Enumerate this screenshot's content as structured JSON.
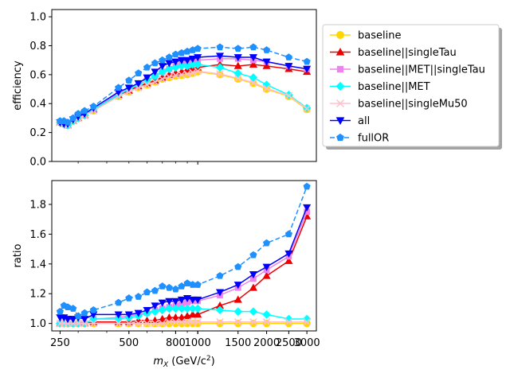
{
  "chart_data": [
    {
      "type": "line",
      "panel": "top",
      "ylabel": "efficiency",
      "xlabel": "",
      "xscale": "log",
      "xlim": [
        230,
        3300
      ],
      "ylim": [
        0.0,
        1.05
      ],
      "yticks": [
        0.0,
        0.2,
        0.4,
        0.6,
        0.8,
        1.0
      ],
      "ytick_labels": [
        "0.0",
        "0.2",
        "0.4",
        "0.6",
        "0.8",
        "1.0"
      ],
      "grid": false,
      "legend_position": "outside-right",
      "x": [
        250,
        260,
        270,
        285,
        300,
        320,
        350,
        450,
        500,
        550,
        600,
        650,
        700,
        750,
        800,
        850,
        900,
        950,
        1000,
        1250,
        1500,
        1750,
        2000,
        2500,
        3000
      ],
      "series": [
        {
          "name": "baseline",
          "color": "#ffd700",
          "marker": "circle",
          "dashed": false,
          "values": [
            0.27,
            0.26,
            0.25,
            0.28,
            0.3,
            0.32,
            0.35,
            0.45,
            0.48,
            0.51,
            0.53,
            0.55,
            0.57,
            0.58,
            0.59,
            0.595,
            0.6,
            0.61,
            0.62,
            0.6,
            0.57,
            0.54,
            0.5,
            0.45,
            0.36
          ]
        },
        {
          "name": "baseline||singleTau",
          "color": "#ee0000",
          "marker": "triangle-up",
          "dashed": false,
          "values": [
            0.27,
            0.26,
            0.25,
            0.28,
            0.3,
            0.32,
            0.36,
            0.46,
            0.49,
            0.52,
            0.54,
            0.56,
            0.58,
            0.6,
            0.61,
            0.62,
            0.635,
            0.645,
            0.65,
            0.67,
            0.66,
            0.67,
            0.66,
            0.64,
            0.62
          ]
        },
        {
          "name": "baseline||MET||singleTau",
          "color": "#ee82ee",
          "marker": "square",
          "dashed": false,
          "values": [
            0.27,
            0.26,
            0.25,
            0.28,
            0.3,
            0.32,
            0.36,
            0.47,
            0.5,
            0.53,
            0.56,
            0.59,
            0.62,
            0.64,
            0.66,
            0.67,
            0.68,
            0.69,
            0.7,
            0.71,
            0.71,
            0.7,
            0.69,
            0.66,
            0.64
          ]
        },
        {
          "name": "baseline||MET",
          "color": "#00ffff",
          "marker": "diamond",
          "dashed": false,
          "values": [
            0.27,
            0.26,
            0.25,
            0.28,
            0.3,
            0.32,
            0.36,
            0.46,
            0.5,
            0.53,
            0.56,
            0.59,
            0.62,
            0.64,
            0.65,
            0.66,
            0.66,
            0.67,
            0.67,
            0.65,
            0.61,
            0.58,
            0.53,
            0.46,
            0.37
          ]
        },
        {
          "name": "baseline||singleMu50",
          "color": "#ffc0cb",
          "marker": "x",
          "dashed": false,
          "values": [
            0.27,
            0.26,
            0.25,
            0.28,
            0.3,
            0.32,
            0.35,
            0.45,
            0.48,
            0.51,
            0.53,
            0.55,
            0.57,
            0.585,
            0.595,
            0.6,
            0.605,
            0.615,
            0.625,
            0.605,
            0.575,
            0.545,
            0.505,
            0.455,
            0.365
          ]
        },
        {
          "name": "all",
          "color": "#0000ff",
          "marker": "triangle-down",
          "dashed": false,
          "values": [
            0.27,
            0.26,
            0.26,
            0.29,
            0.31,
            0.33,
            0.37,
            0.48,
            0.51,
            0.54,
            0.58,
            0.62,
            0.66,
            0.68,
            0.69,
            0.7,
            0.7,
            0.71,
            0.72,
            0.73,
            0.72,
            0.72,
            0.69,
            0.66,
            0.64
          ]
        },
        {
          "name": "fullOR",
          "color": "#1e90ff",
          "marker": "pentagon",
          "dashed": true,
          "values": [
            0.28,
            0.28,
            0.27,
            0.3,
            0.33,
            0.35,
            0.38,
            0.51,
            0.56,
            0.61,
            0.65,
            0.68,
            0.7,
            0.72,
            0.74,
            0.75,
            0.76,
            0.77,
            0.78,
            0.79,
            0.78,
            0.79,
            0.77,
            0.72,
            0.69
          ]
        }
      ]
    },
    {
      "type": "line",
      "panel": "bottom",
      "ylabel": "ratio",
      "xlabel": "m_X (GeV/c^2)",
      "xscale": "log",
      "xlim": [
        230,
        3300
      ],
      "ylim": [
        0.95,
        1.96
      ],
      "yticks": [
        1.0,
        1.2,
        1.4,
        1.6,
        1.8
      ],
      "ytick_labels": [
        "1.0",
        "1.2",
        "1.4",
        "1.6",
        "1.8"
      ],
      "xticks": [
        250,
        500,
        800,
        1000,
        1500,
        2000,
        2500,
        3000
      ],
      "xtick_labels": [
        "250",
        "500",
        "800",
        "1000",
        "1500",
        "2000",
        "2500",
        "3000"
      ],
      "grid": false,
      "x": [
        250,
        260,
        270,
        285,
        300,
        320,
        350,
        450,
        500,
        550,
        600,
        650,
        700,
        750,
        800,
        850,
        900,
        950,
        1000,
        1250,
        1500,
        1750,
        2000,
        2500,
        3000
      ],
      "series": [
        {
          "name": "baseline",
          "color": "#ffd700",
          "marker": "circle",
          "dashed": false,
          "values": [
            1.0,
            1.0,
            1.0,
            1.0,
            1.0,
            1.0,
            1.0,
            1.0,
            1.0,
            1.0,
            1.0,
            1.0,
            1.0,
            1.0,
            1.0,
            1.0,
            1.0,
            1.0,
            1.0,
            1.0,
            1.0,
            1.0,
            1.0,
            1.0,
            1.0
          ]
        },
        {
          "name": "baseline||singleTau",
          "color": "#ee0000",
          "marker": "triangle-up",
          "dashed": false,
          "values": [
            1.0,
            1.0,
            1.0,
            1.0,
            1.0,
            1.0,
            1.01,
            1.01,
            1.01,
            1.02,
            1.02,
            1.02,
            1.03,
            1.04,
            1.04,
            1.04,
            1.05,
            1.06,
            1.06,
            1.12,
            1.16,
            1.24,
            1.32,
            1.42,
            1.72
          ]
        },
        {
          "name": "baseline||MET||singleTau",
          "color": "#ee82ee",
          "marker": "square",
          "dashed": false,
          "values": [
            1.0,
            1.0,
            1.0,
            1.0,
            1.0,
            1.0,
            1.03,
            1.04,
            1.05,
            1.06,
            1.07,
            1.09,
            1.1,
            1.11,
            1.12,
            1.13,
            1.14,
            1.15,
            1.15,
            1.19,
            1.24,
            1.3,
            1.36,
            1.45,
            1.75
          ]
        },
        {
          "name": "baseline||MET",
          "color": "#00ffff",
          "marker": "diamond",
          "dashed": false,
          "values": [
            1.0,
            1.0,
            1.0,
            1.0,
            1.0,
            1.0,
            1.03,
            1.03,
            1.04,
            1.05,
            1.07,
            1.08,
            1.09,
            1.1,
            1.1,
            1.1,
            1.1,
            1.1,
            1.1,
            1.09,
            1.08,
            1.08,
            1.06,
            1.03,
            1.03
          ]
        },
        {
          "name": "baseline||singleMu50",
          "color": "#ffc0cb",
          "marker": "x",
          "dashed": false,
          "values": [
            1.0,
            1.0,
            1.0,
            1.0,
            1.0,
            1.0,
            1.0,
            1.0,
            1.0,
            1.0,
            1.0,
            1.0,
            1.0,
            1.01,
            1.01,
            1.01,
            1.01,
            1.01,
            1.01,
            1.01,
            1.01,
            1.01,
            1.01,
            1.01,
            1.01
          ]
        },
        {
          "name": "all",
          "color": "#0000ff",
          "marker": "triangle-down",
          "dashed": false,
          "values": [
            1.04,
            1.04,
            1.03,
            1.03,
            1.04,
            1.03,
            1.06,
            1.06,
            1.06,
            1.07,
            1.09,
            1.12,
            1.14,
            1.15,
            1.15,
            1.16,
            1.17,
            1.16,
            1.16,
            1.21,
            1.26,
            1.33,
            1.38,
            1.47,
            1.78
          ]
        },
        {
          "name": "fullOR",
          "color": "#1e90ff",
          "marker": "pentagon",
          "dashed": true,
          "values": [
            1.08,
            1.12,
            1.11,
            1.1,
            1.05,
            1.07,
            1.09,
            1.14,
            1.17,
            1.18,
            1.21,
            1.22,
            1.25,
            1.24,
            1.23,
            1.25,
            1.27,
            1.26,
            1.26,
            1.32,
            1.38,
            1.46,
            1.54,
            1.6,
            1.92
          ]
        }
      ]
    }
  ]
}
